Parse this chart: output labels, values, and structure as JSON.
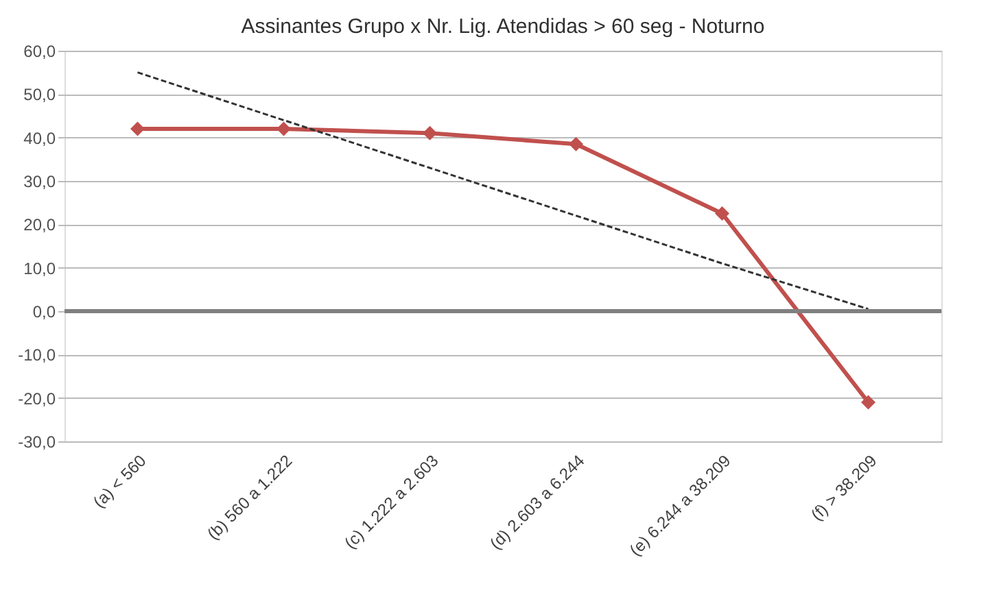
{
  "chart_data": {
    "type": "line",
    "title": "Assinantes Grupo x Nr. Lig. Atendidas > 60 seg - Noturno",
    "categories": [
      "(a) < 560",
      "(b) 560 a 1.222",
      "(c) 1.222 a 2.603",
      "(d) 2.603 a 6.244",
      "(e) 6.244 a 38.209",
      "(f) > 38.209"
    ],
    "series": [
      {
        "color": "#c0504d",
        "values": [
          42.0,
          42.0,
          41.0,
          38.5,
          22.5,
          -21.0
        ],
        "marker": "diamond",
        "line_style": "solid"
      },
      {
        "color": "#333333",
        "values": [
          55.0,
          44.0,
          33.0,
          22.0,
          11.0,
          0.5
        ],
        "marker": "none",
        "line_style": "dashed"
      }
    ],
    "ylim": [
      -30,
      60
    ],
    "yticks": [
      {
        "value": -30,
        "label": "-30,0"
      },
      {
        "value": -20,
        "label": "-20,0"
      },
      {
        "value": -10,
        "label": "-10,0"
      },
      {
        "value": 0,
        "label": "0,0"
      },
      {
        "value": 10,
        "label": "10,0"
      },
      {
        "value": 20,
        "label": "20,0"
      },
      {
        "value": 30,
        "label": "30,0"
      },
      {
        "value": 40,
        "label": "40,0"
      },
      {
        "value": 50,
        "label": "50,0"
      },
      {
        "value": 60,
        "label": "60,0"
      }
    ],
    "grid": "y",
    "ref_lines": [
      {
        "axis": "y",
        "value": 0,
        "color": "#808080"
      }
    ]
  }
}
